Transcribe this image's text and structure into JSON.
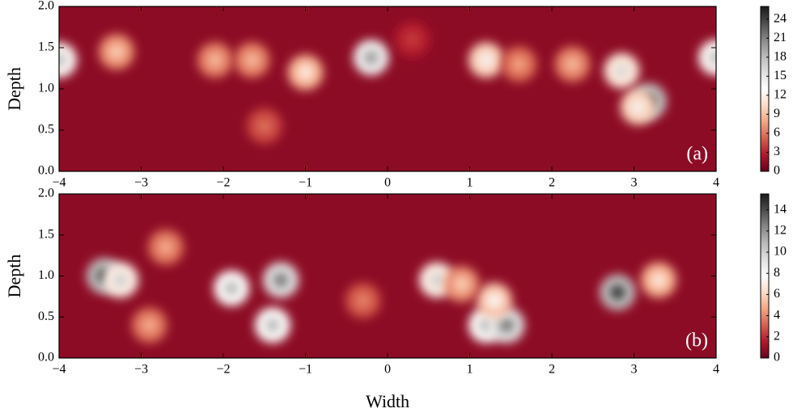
{
  "chart_data": [
    {
      "type": "heatmap",
      "panel_label": "(a)",
      "ylabel": "Depth",
      "colormap": "RdGy_r",
      "x": [
        -4,
        -3.3,
        -2.1,
        -1.65,
        -1.0,
        -0.2,
        1.2,
        1.6,
        2.25,
        2.85,
        3.18,
        3.05,
        4,
        -1.5,
        0.3
      ],
      "y": [
        1.35,
        1.45,
        1.35,
        1.35,
        1.2,
        1.38,
        1.35,
        1.3,
        1.3,
        1.22,
        0.85,
        0.78,
        1.38,
        0.55,
        1.6
      ],
      "values": [
        18,
        10,
        9,
        9,
        12,
        20,
        14,
        8,
        9,
        16,
        25,
        14,
        18,
        6,
        4
      ],
      "xlim": [
        -4,
        4
      ],
      "xticks": [
        {
          "value": -4,
          "label": "−4"
        },
        {
          "value": -3,
          "label": "−3"
        },
        {
          "value": -2,
          "label": "−2"
        },
        {
          "value": -1,
          "label": "−1"
        },
        0,
        1,
        2,
        3,
        4
      ],
      "ylim": [
        0,
        2
      ],
      "yticks": [
        {
          "value": 0,
          "label": "0.0"
        },
        0.5,
        {
          "value": 1,
          "label": "1.0"
        },
        1.5,
        {
          "value": 2,
          "label": "2.0"
        }
      ],
      "clim": [
        0,
        26
      ],
      "cticks": [
        0,
        3,
        6,
        9,
        12,
        15,
        18,
        21,
        24
      ]
    },
    {
      "type": "heatmap",
      "panel_label": "(b)",
      "xlabel": "Width",
      "ylabel": "Depth",
      "colormap": "RdGy_r",
      "x": [
        -3.45,
        -3.25,
        -2.7,
        -1.9,
        -1.3,
        -1.4,
        -2.9,
        0.6,
        1.2,
        1.45,
        1.3,
        2.8,
        3.3,
        -0.3,
        0.9
      ],
      "y": [
        1.0,
        0.95,
        1.35,
        0.85,
        0.95,
        0.4,
        0.4,
        0.95,
        0.4,
        0.4,
        0.7,
        0.8,
        0.95,
        0.7,
        0.9
      ],
      "values": [
        15,
        10,
        5,
        11,
        13,
        11,
        5,
        10,
        11,
        13,
        8,
        15,
        7,
        4,
        6
      ],
      "xlim": [
        -4,
        4
      ],
      "xticks": [
        {
          "value": -4,
          "label": "−4"
        },
        {
          "value": -3,
          "label": "−3"
        },
        {
          "value": -2,
          "label": "−2"
        },
        {
          "value": -1,
          "label": "−1"
        },
        0,
        1,
        2,
        3,
        4
      ],
      "ylim": [
        0,
        2
      ],
      "yticks": [
        {
          "value": 0,
          "label": "0.0"
        },
        0.5,
        {
          "value": 1,
          "label": "1.0"
        },
        1.5,
        {
          "value": 2,
          "label": "2.0"
        }
      ],
      "clim": [
        0,
        15.5
      ],
      "cticks": [
        0,
        2,
        4,
        6,
        8,
        10,
        12,
        14
      ]
    }
  ]
}
